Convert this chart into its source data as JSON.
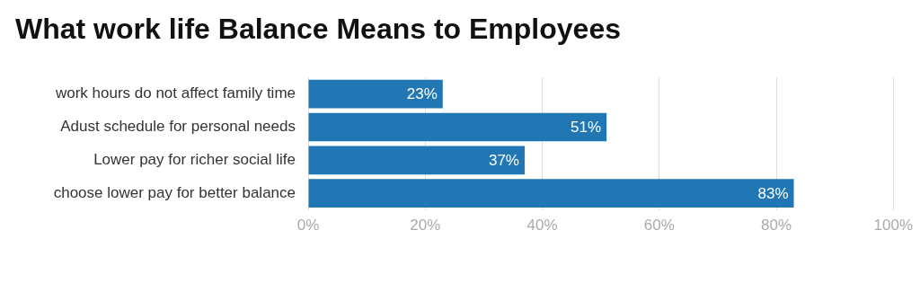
{
  "chart_data": {
    "type": "bar",
    "title": "What work life Balance Means to Employees",
    "orientation": "horizontal",
    "categories": [
      "work hours do not affect family time",
      "Adust schedule for personal needs",
      "Lower pay for richer social life",
      "choose lower pay for better balance"
    ],
    "values": [
      23,
      51,
      37,
      83
    ],
    "color": "#2077b4",
    "value_labels": [
      "23%",
      "51%",
      "37%",
      "83%"
    ],
    "xlim": [
      0,
      100
    ],
    "xticks": [
      {
        "value": 0,
        "label": "0%"
      },
      {
        "value": 20,
        "label": "20%"
      },
      {
        "value": 40,
        "label": "40%"
      },
      {
        "value": 60,
        "label": "60%"
      },
      {
        "value": 80,
        "label": "80%"
      },
      {
        "value": 100,
        "label": "100%"
      }
    ],
    "grid": "x",
    "legend": false
  }
}
